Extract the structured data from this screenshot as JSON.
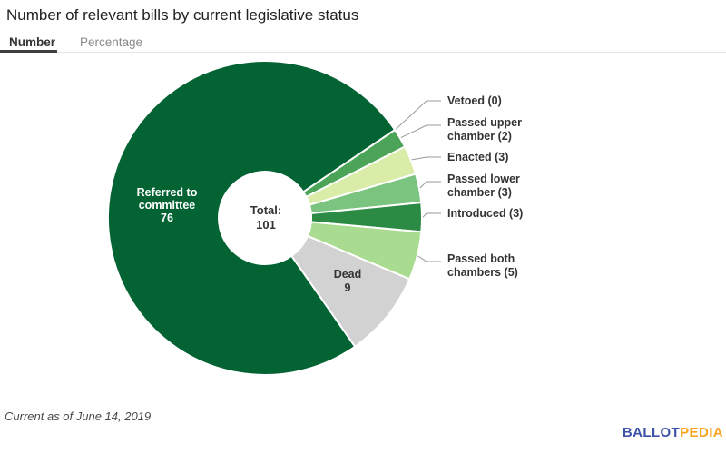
{
  "title": "Number of relevant bills by current legislative status",
  "tabs": [
    {
      "label": "Number",
      "active": true
    },
    {
      "label": "Percentage",
      "active": false
    }
  ],
  "footer": "Current as of June 14, 2019",
  "logo": {
    "part1": "BALLOT",
    "part2": "PEDIA",
    "color1": "#3d52a8",
    "color2": "#f9a21f"
  },
  "chart_data": {
    "type": "pie",
    "donut": true,
    "title": "Number of relevant bills by current legislative status",
    "total": 101,
    "start_angle_deg": 145,
    "legend_position": "none",
    "center": {
      "line1": "Total:",
      "line2": "101"
    },
    "categories": [
      "Referred to committee",
      "Vetoed",
      "Passed upper chamber",
      "Enacted",
      "Passed lower chamber",
      "Introduced",
      "Passed both chambers",
      "Dead"
    ],
    "values": [
      76,
      0,
      2,
      3,
      3,
      3,
      5,
      9
    ],
    "slices": [
      {
        "name": "Referred to committee",
        "value": 76,
        "color": "#036333",
        "label_placement": "inside",
        "label_color": "#ffffff",
        "label_lines": [
          "Referred to",
          "committee",
          "76"
        ]
      },
      {
        "name": "Vetoed",
        "value": 0,
        "color": "#4ba458",
        "label_placement": "callout",
        "label_lines": [
          "Vetoed (0)"
        ]
      },
      {
        "name": "Passed upper chamber",
        "value": 2,
        "color": "#4ba458",
        "label_placement": "callout",
        "label_lines": [
          "Passed upper",
          "chamber (2)"
        ]
      },
      {
        "name": "Enacted",
        "value": 3,
        "color": "#d9eda9",
        "label_placement": "callout",
        "label_lines": [
          "Enacted (3)"
        ]
      },
      {
        "name": "Passed lower chamber",
        "value": 3,
        "color": "#7bc47f",
        "label_placement": "callout",
        "label_lines": [
          "Passed lower",
          "chamber (3)"
        ]
      },
      {
        "name": "Introduced",
        "value": 3,
        "color": "#2b8a43",
        "label_placement": "callout",
        "label_lines": [
          "Introduced (3)"
        ]
      },
      {
        "name": "Passed both chambers",
        "value": 5,
        "color": "#a9db90",
        "label_placement": "callout",
        "label_lines": [
          "Passed both",
          "chambers (5)"
        ]
      },
      {
        "name": "Dead",
        "value": 9,
        "color": "#d2d2d2",
        "label_placement": "inside",
        "label_color": "#333333",
        "label_lines": [
          "Dead",
          "9"
        ]
      }
    ],
    "connector_color": "#999999"
  }
}
